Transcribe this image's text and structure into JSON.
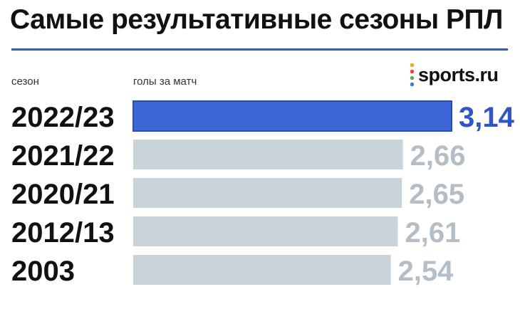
{
  "title": "Самые результативные сезоны РПЛ",
  "headers": {
    "season": "сезон",
    "goals": "голы за матч"
  },
  "logo": {
    "text": "sports.ru",
    "dot_colors": [
      "#f5a623",
      "#e8453c",
      "#4caf50",
      "#3b7bd8"
    ]
  },
  "colors": {
    "accent_bar": "#3b66d6",
    "accent_bar_border": "#2a4fb0",
    "accent_value": "#2f56c2",
    "muted_bar": "#c9d3da",
    "muted_value": "#b3bec6",
    "rule": "#3a5ba8"
  },
  "chart_data": {
    "type": "bar",
    "orientation": "horizontal",
    "categories": [
      "2022/23",
      "2021/22",
      "2020/21",
      "2012/13",
      "2003"
    ],
    "values": [
      3.14,
      2.66,
      2.65,
      2.61,
      2.54
    ],
    "value_labels": [
      "3,14",
      "2,66",
      "2,65",
      "2,61",
      "2,54"
    ],
    "highlight_index": 0,
    "title": "Самые результативные сезоны РПЛ",
    "xlabel": "голы за матч",
    "ylabel": "сезон"
  }
}
